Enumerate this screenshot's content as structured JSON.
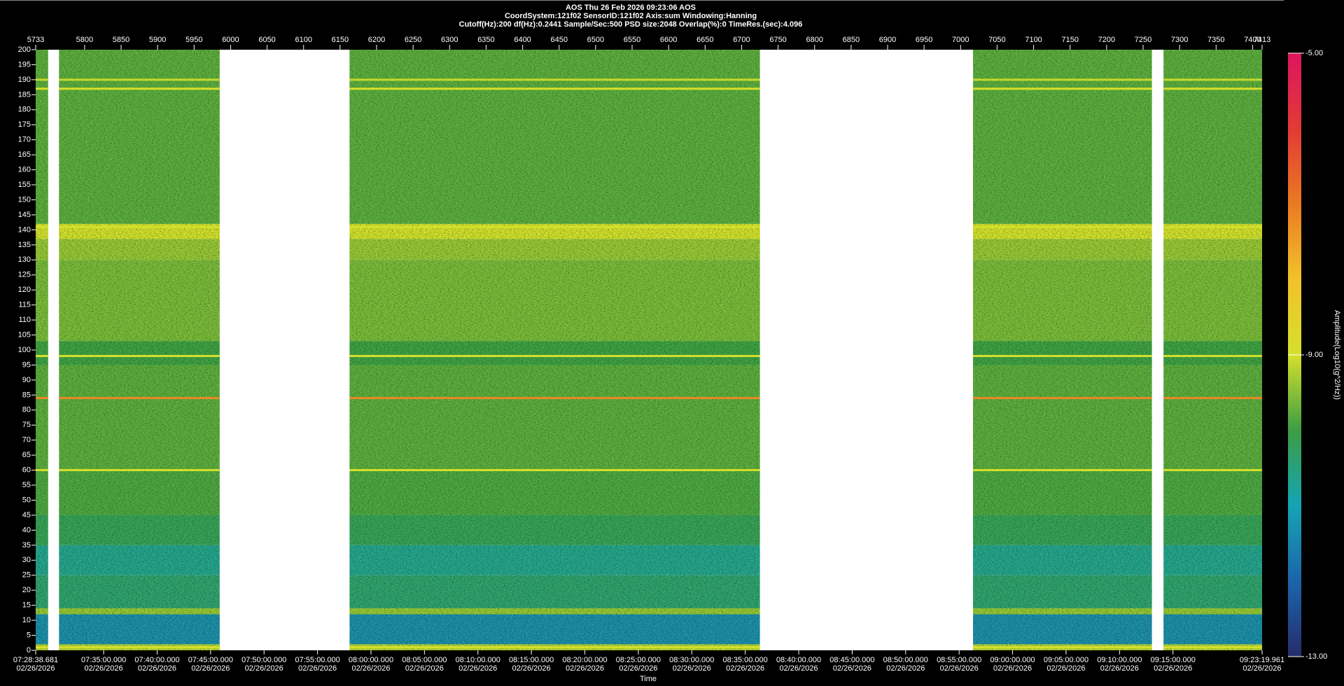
{
  "chart_data": {
    "type": "spectrogram",
    "title_lines": [
      "AOS  Thu 26 Feb 2026 09:23:06  AOS",
      "CoordSystem:121f02    SensorID:121f02    Axis:sum    Windowing:Hanning",
      "Cutoff(Hz):200      df(Hz):0.2441      Sample/Sec:500      PSD size:2048      Overlap(%):0      TimeRes.(sec):4.096"
    ],
    "xlim": [
      5733,
      7413
    ],
    "xticks": [
      5733,
      5800,
      5850,
      5900,
      5950,
      6000,
      6050,
      6100,
      6150,
      6200,
      6250,
      6300,
      6350,
      6400,
      6450,
      6500,
      6550,
      6600,
      6650,
      6700,
      6750,
      6800,
      6850,
      6900,
      6950,
      7000,
      7050,
      7100,
      7150,
      7200,
      7250,
      7300,
      7350,
      7400,
      7413
    ],
    "ylim": [
      0,
      200
    ],
    "yticks": [
      0,
      5,
      10,
      15,
      20,
      25,
      30,
      35,
      40,
      45,
      50,
      55,
      60,
      65,
      70,
      75,
      80,
      85,
      90,
      95,
      100,
      105,
      110,
      115,
      120,
      125,
      130,
      135,
      140,
      145,
      150,
      155,
      160,
      165,
      170,
      175,
      180,
      185,
      190,
      195,
      200
    ],
    "x_label": "Time",
    "time_lim": [
      "07:28:38.681",
      "09:23:19.961"
    ],
    "time_ticks": [
      {
        "time": "07:28:38.681",
        "date": "02/26/2026"
      },
      {
        "time": "07:35:00.000",
        "date": "02/26/2026"
      },
      {
        "time": "07:40:00.000",
        "date": "02/26/2026"
      },
      {
        "time": "07:45:00.000",
        "date": "02/26/2026"
      },
      {
        "time": "07:50:00.000",
        "date": "02/26/2026"
      },
      {
        "time": "07:55:00.000",
        "date": "02/26/2026"
      },
      {
        "time": "08:00:00.000",
        "date": "02/26/2026"
      },
      {
        "time": "08:05:00.000",
        "date": "02/26/2026"
      },
      {
        "time": "08:10:00.000",
        "date": "02/26/2026"
      },
      {
        "time": "08:15:00.000",
        "date": "02/26/2026"
      },
      {
        "time": "08:20:00.000",
        "date": "02/26/2026"
      },
      {
        "time": "08:25:00.000",
        "date": "02/26/2026"
      },
      {
        "time": "08:30:00.000",
        "date": "02/26/2026"
      },
      {
        "time": "08:35:00.000",
        "date": "02/26/2026"
      },
      {
        "time": "08:40:00.000",
        "date": "02/26/2026"
      },
      {
        "time": "08:45:00.000",
        "date": "02/26/2026"
      },
      {
        "time": "08:50:00.000",
        "date": "02/26/2026"
      },
      {
        "time": "08:55:00.000",
        "date": "02/26/2026"
      },
      {
        "time": "09:00:00.000",
        "date": "02/26/2026"
      },
      {
        "time": "09:05:00.000",
        "date": "02/26/2026"
      },
      {
        "time": "09:10:00.000",
        "date": "02/26/2026"
      },
      {
        "time": "09:15:00.000",
        "date": "02/26/2026"
      },
      {
        "time": "09:23:19.961",
        "date": "02/26/2026"
      }
    ],
    "segments": [
      [
        5733,
        5750
      ],
      [
        5765,
        5985
      ],
      [
        6163,
        6725
      ],
      [
        7017,
        7262
      ],
      [
        7278,
        7413
      ]
    ],
    "bands": [
      {
        "from": 0,
        "to": 2,
        "level": -9.2
      },
      {
        "from": 2,
        "to": 12,
        "level": -11.4
      },
      {
        "from": 12,
        "to": 14,
        "level": -9.4
      },
      {
        "from": 14,
        "to": 25,
        "level": -10.4
      },
      {
        "from": 25,
        "to": 35,
        "level": -10.7
      },
      {
        "from": 35,
        "to": 45,
        "level": -10.2
      },
      {
        "from": 45,
        "to": 60,
        "level": -9.9
      },
      {
        "from": 60,
        "to": 95,
        "level": -9.8
      },
      {
        "from": 95,
        "to": 103,
        "level": -10.0
      },
      {
        "from": 103,
        "to": 130,
        "level": -9.6
      },
      {
        "from": 130,
        "to": 137,
        "level": -9.4
      },
      {
        "from": 137,
        "to": 142,
        "level": -9.0
      },
      {
        "from": 142,
        "to": 200,
        "level": -9.8
      }
    ],
    "lines": [
      {
        "freq": 1,
        "level": -9.0
      },
      {
        "freq": 60,
        "level": -9.0
      },
      {
        "freq": 84,
        "level": -7.2
      },
      {
        "freq": 98,
        "level": -9.0
      },
      {
        "freq": 141,
        "level": -9.0
      },
      {
        "freq": 187,
        "level": -9.0
      },
      {
        "freq": 190,
        "level": -9.1
      }
    ],
    "colorbar_label": "Amplitude(Log10(g^2/Hz))",
    "colorbar_lim": [
      -13,
      -5
    ],
    "colorbar_ticks": [
      {
        "value": -5,
        "label": "-5.00"
      },
      {
        "value": -9,
        "label": "-9.00"
      },
      {
        "value": -13,
        "label": "-13.00"
      }
    ],
    "colormap": [
      "#252c6c",
      "#1c64aa",
      "#15a3b3",
      "#3c9d43",
      "#d6e02c",
      "#f2c22a",
      "#ea7a22",
      "#e23a36",
      "#dc1460"
    ]
  }
}
